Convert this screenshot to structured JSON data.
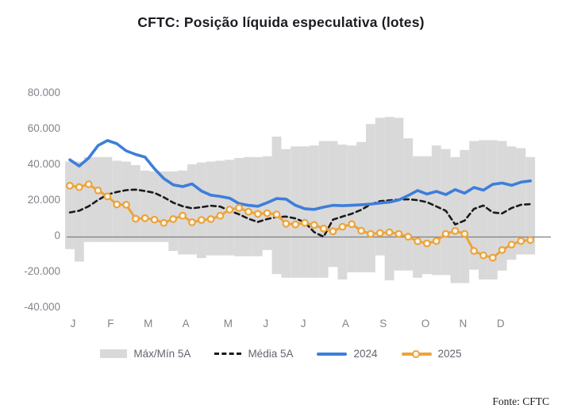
{
  "title": "CFTC: Posição líquida especulativa (lotes)",
  "source": "Fonte: CFTC",
  "colors": {
    "background": "#ffffff",
    "title_text": "#1b1b22",
    "axis_text": "#83838c",
    "legend_text": "#64646e",
    "zero_line": "#7f7f7f",
    "band": "#d9d9d9",
    "media_5a": "#1a1a1a",
    "line_2024": "#3d7edb",
    "line_2025": "#eda33b",
    "marker_fill_2025": "#fdf8ec",
    "source_text": "#1a1a1a"
  },
  "y_axis": {
    "ticks": [
      {
        "label": "80.000",
        "value": 80000
      },
      {
        "label": "60.000",
        "value": 60000
      },
      {
        "label": "40.000",
        "value": 40000
      },
      {
        "label": "20.000",
        "value": 20000
      },
      {
        "label": "0",
        "value": 0
      },
      {
        "label": "-20.000",
        "value": -20000
      },
      {
        "label": "-40.000",
        "value": -40000
      }
    ],
    "min": -40000,
    "max": 80000,
    "gridlines": false
  },
  "x_axis": {
    "labels": [
      "J",
      "F",
      "M",
      "A",
      "M",
      "J",
      "J",
      "A",
      "S",
      "O",
      "N",
      "D"
    ],
    "label_week_index": [
      0,
      4,
      8,
      12,
      16.5,
      20.5,
      24.5,
      29,
      33,
      37.5,
      41.5,
      45.5
    ]
  },
  "legend": [
    {
      "label": "Máx/Mín 5A",
      "type": "band",
      "color": "#d9d9d9"
    },
    {
      "label": "Média 5A",
      "type": "dashed-line",
      "color": "#1a1a1a"
    },
    {
      "label": "2024",
      "type": "line",
      "color": "#3d7edb"
    },
    {
      "label": "2025",
      "type": "line-marker",
      "color": "#eda33b"
    }
  ],
  "chart_data": {
    "type": "line",
    "title": "CFTC: Posição líquida especulativa (lotes)",
    "xlabel": "",
    "ylabel": "lotes",
    "x_unit": "week-of-year (weekly data, Jan–Dec)",
    "n_points": 50,
    "ylim": [
      -40000,
      80000
    ],
    "legend_position": "bottom",
    "band": {
      "name": "Máx/Mín 5A",
      "max": [
        42000,
        42000,
        44500,
        44500,
        44500,
        42500,
        42000,
        40000,
        37000,
        36500,
        36500,
        36500,
        37000,
        40500,
        41500,
        42000,
        42500,
        43000,
        44000,
        44500,
        44500,
        45000,
        56000,
        49000,
        50500,
        50500,
        51000,
        53500,
        53500,
        51500,
        51000,
        53000,
        63000,
        66500,
        67000,
        66500,
        55000,
        45000,
        45000,
        51000,
        49000,
        44500,
        48500,
        53500,
        54000,
        54000,
        53500,
        50500,
        49500,
        44500
      ],
      "min": [
        -7000,
        -14000,
        -3000,
        -3000,
        -3000,
        -3000,
        -3000,
        -3000,
        -3000,
        -3000,
        -3000,
        -8000,
        -10000,
        -10000,
        -12000,
        -10500,
        -10500,
        -10500,
        -11000,
        -11000,
        -11000,
        -7500,
        -21000,
        -23000,
        -23000,
        -23000,
        -23000,
        -23000,
        -17000,
        -24000,
        -20000,
        -20000,
        -20000,
        -10500,
        -24500,
        -19000,
        -19000,
        -23000,
        -21000,
        -21500,
        -21500,
        -26000,
        -26000,
        -18500,
        -24000,
        -24000,
        -19000,
        -13000,
        -10000,
        -10000
      ]
    },
    "series": [
      {
        "name": "Média 5A",
        "style": "dashed",
        "values": [
          13500,
          14500,
          17000,
          20500,
          23500,
          25000,
          26000,
          26300,
          25500,
          24500,
          22000,
          19000,
          17000,
          15800,
          16500,
          17300,
          16800,
          14500,
          12500,
          10000,
          8200,
          9800,
          11000,
          11200,
          10200,
          8000,
          2500,
          -100,
          9500,
          11200,
          12800,
          15000,
          18000,
          19800,
          20300,
          20700,
          20900,
          20400,
          19300,
          16900,
          14500,
          6800,
          9000,
          15500,
          17400,
          13500,
          13000,
          16000,
          17800,
          18200
        ]
      },
      {
        "name": "2024",
        "style": "solid",
        "values": [
          43000,
          39500,
          44000,
          51000,
          53800,
          52000,
          48000,
          46000,
          44500,
          38000,
          32500,
          29000,
          28000,
          29500,
          25500,
          23200,
          22500,
          21500,
          18500,
          17500,
          17000,
          19000,
          21300,
          21000,
          17500,
          15600,
          15200,
          16500,
          17500,
          17300,
          17500,
          17800,
          18200,
          18800,
          19300,
          20500,
          23000,
          25800,
          23800,
          25300,
          23500,
          26300,
          24300,
          27500,
          26000,
          29300,
          30000,
          28700,
          30500,
          31200
        ]
      },
      {
        "name": "2025",
        "style": "solid-markers",
        "values": [
          28500,
          27700,
          29300,
          25800,
          22500,
          18000,
          17800,
          10000,
          10300,
          9500,
          7700,
          9800,
          11700,
          8000,
          9300,
          9800,
          11700,
          15100,
          16100,
          13900,
          12700,
          13100,
          12400,
          7200,
          6800,
          7700,
          6500,
          4500,
          3000,
          5500,
          7000,
          3300,
          1500,
          2000,
          2400,
          1500,
          -100,
          -2600,
          -3800,
          -2500,
          1500,
          3200,
          1500,
          -8000,
          -10500,
          -11800,
          -7500,
          -4500,
          -2500,
          -1900
        ]
      }
    ]
  }
}
